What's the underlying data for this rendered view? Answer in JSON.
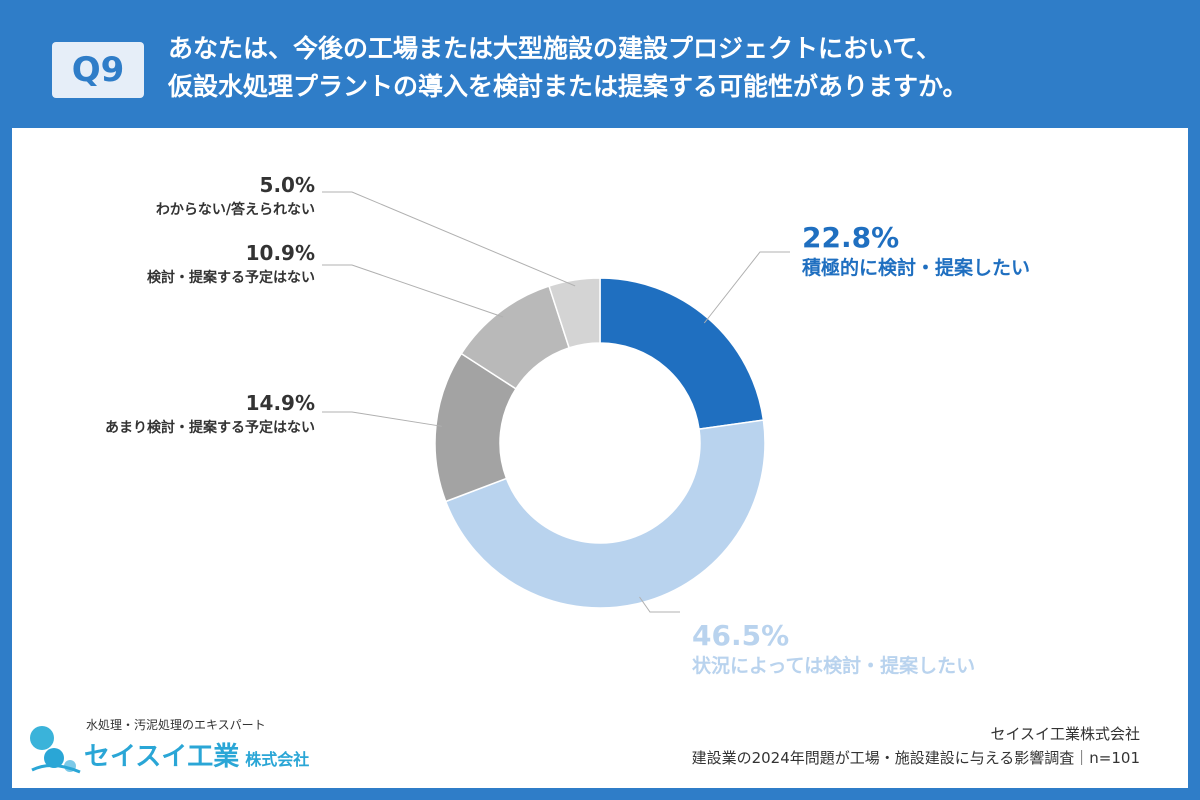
{
  "header": {
    "badge": "Q9",
    "title_line1": "あなたは、今後の工場または大型施設の建設プロジェクトにおいて、",
    "title_line2": "仮設水処理プラントの導入を検討または提案する可能性がありますか。"
  },
  "chart_data": {
    "type": "pie",
    "donut": true,
    "slices": [
      {
        "label": "積極的に検討・提案したい",
        "value": 22.8,
        "pct_text": "22.8%",
        "color": "#1f6fc0",
        "text_color": "#1f6fc0"
      },
      {
        "label": "状況によっては検討・提案したい",
        "value": 46.5,
        "pct_text": "46.5%",
        "color": "#b9d3ee",
        "text_color": "#b9d3ee"
      },
      {
        "label": "あまり検討・提案する予定はない",
        "value": 14.9,
        "pct_text": "14.9%",
        "color": "#a3a3a3",
        "text_color": "#333333"
      },
      {
        "label": "検討・提案する予定はない",
        "value": 10.9,
        "pct_text": "10.9%",
        "color": "#b9b9b9",
        "text_color": "#333333"
      },
      {
        "label": "わからない/答えられない",
        "value": 5.0,
        "pct_text": "5.0%",
        "color": "#d4d4d4",
        "text_color": "#333333"
      }
    ]
  },
  "footer": {
    "company": "セイスイ工業株式会社",
    "survey": "建設業の2024年問題が工場・施設建設に与える影響調査｜n=101"
  },
  "logo": {
    "tagline": "水処理・汚泥処理のエキスパート",
    "name": "セイスイ工業",
    "suffix": "株式会社"
  }
}
